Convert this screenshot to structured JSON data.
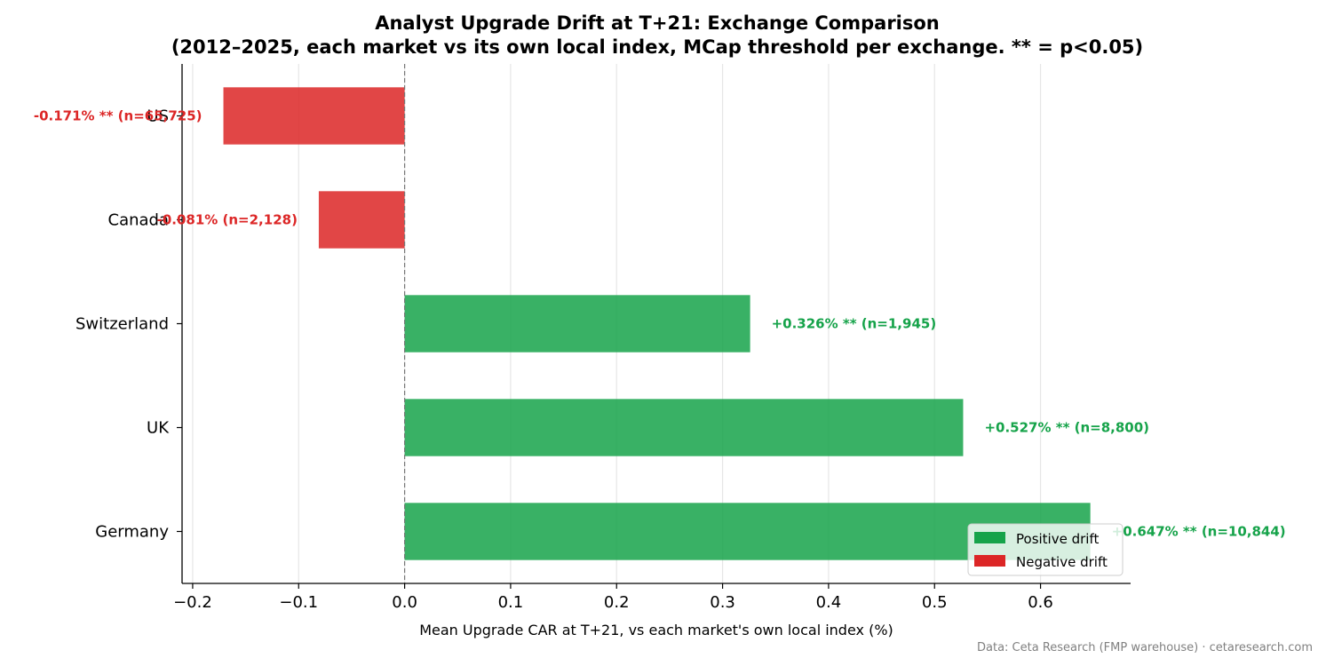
{
  "chart_data": {
    "type": "bar",
    "orientation": "horizontal",
    "title_lines": [
      "Analyst Upgrade Drift at T+21: Exchange Comparison",
      "(2012–2025, each market vs its own local index, MCap threshold per exchange. ** = p<0.05)"
    ],
    "xlabel": "Mean Upgrade CAR at T+21, vs each market's own local index (%)",
    "ylabel": "",
    "xlim": [
      -0.21,
      0.685
    ],
    "x_ticks": [
      -0.2,
      -0.1,
      0.0,
      0.1,
      0.2,
      0.3,
      0.4,
      0.5,
      0.6
    ],
    "x_tick_labels": [
      "−0.2",
      "−0.1",
      "0.0",
      "0.1",
      "0.2",
      "0.3",
      "0.4",
      "0.5",
      "0.6"
    ],
    "grid": "vertical",
    "zero_line": "dashed",
    "categories": [
      "US",
      "Canada",
      "Switzerland",
      "UK",
      "Germany"
    ],
    "values": [
      -0.171,
      -0.081,
      0.326,
      0.527,
      0.647
    ],
    "data_labels": [
      "-0.171% **  (n=65,725)",
      "-0.081%  (n=2,128)",
      "+0.326% **  (n=1,945)",
      "+0.527% **  (n=8,800)",
      "+0.647% **  (n=10,844)"
    ],
    "legend": {
      "placement": "bottom-right",
      "entries": [
        {
          "label": "Positive drift",
          "color": "#16a34a"
        },
        {
          "label": "Negative drift",
          "color": "#dc2626"
        }
      ]
    },
    "colors": {
      "positive": "#16a34a",
      "negative": "#dc2626",
      "positive_label": "#16a34a",
      "negative_label": "#dc2626",
      "grid": "#e6e6e6"
    },
    "source_note": "Data: Ceta Research (FMP warehouse) · cetaresearch.com"
  }
}
